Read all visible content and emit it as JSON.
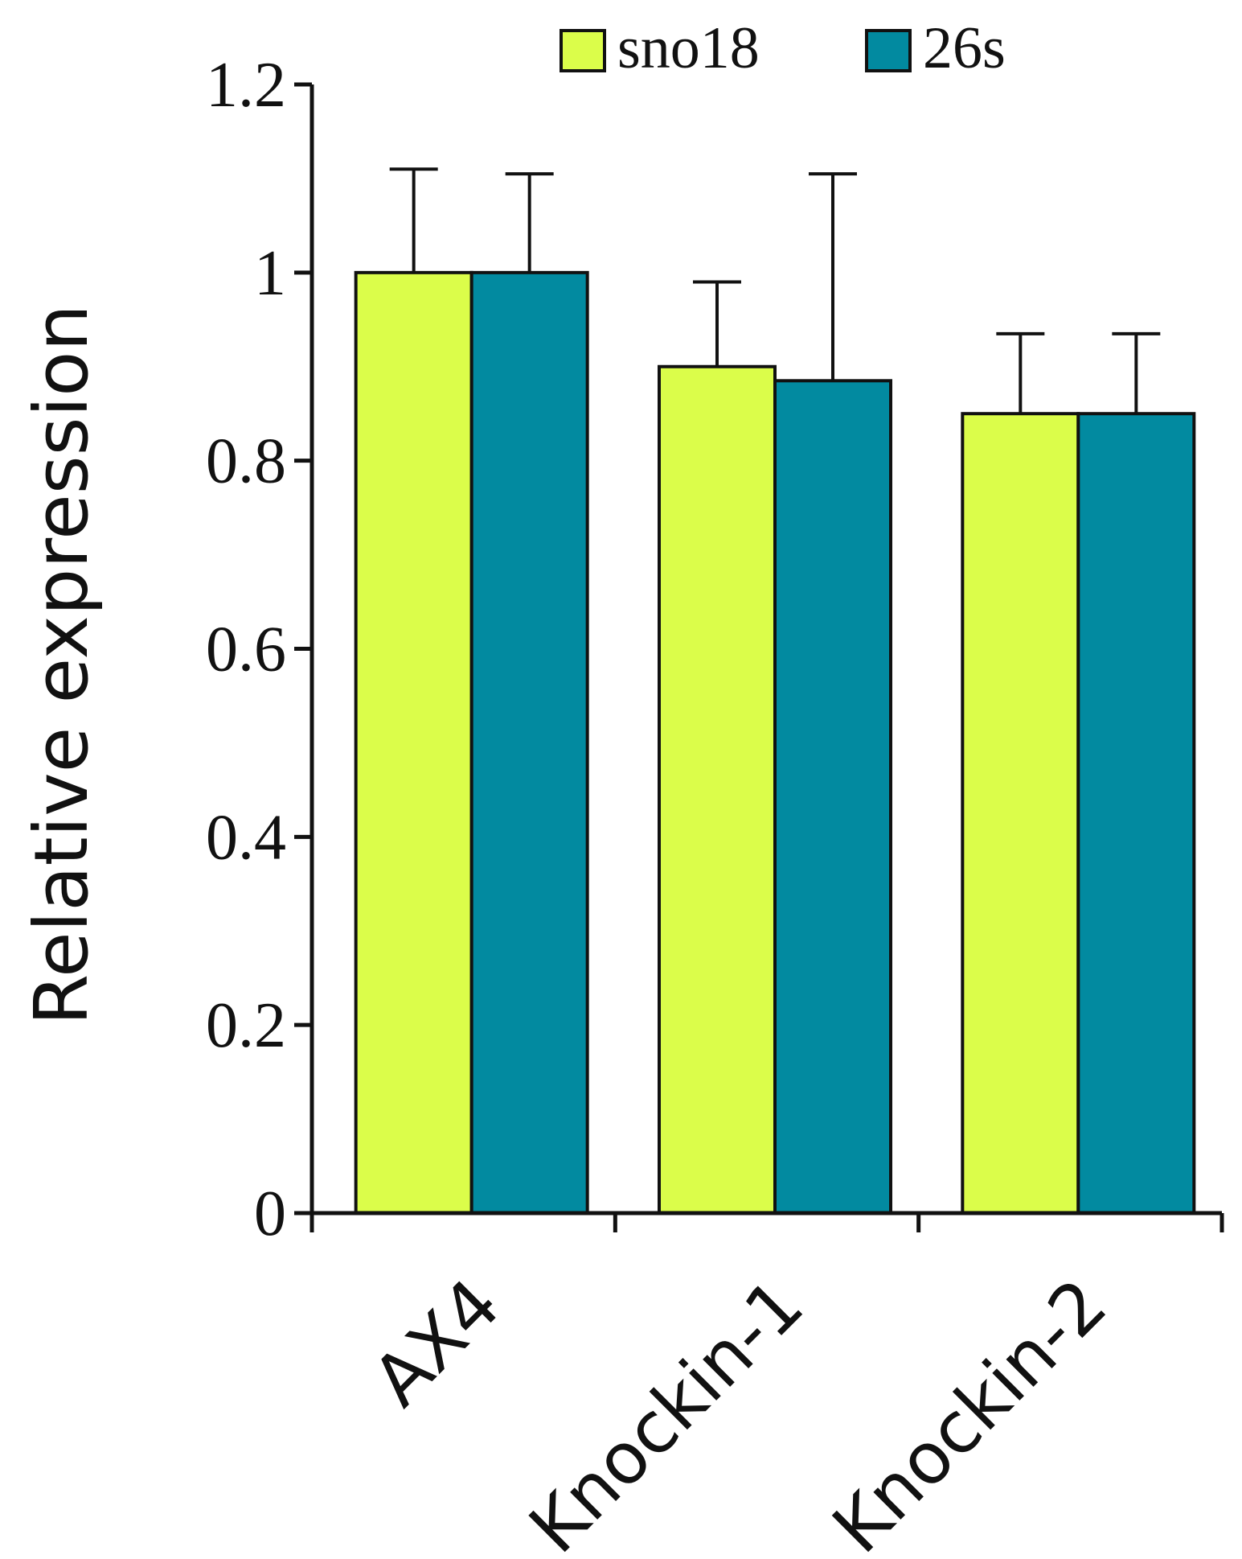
{
  "chart_data": {
    "type": "bar",
    "title": "",
    "xlabel": "",
    "ylabel": "Relative expression",
    "ylim": [
      0,
      1.2
    ],
    "y_ticks": [
      "0",
      "0.2",
      "0.4",
      "0.6",
      "0.8",
      "1",
      "1.2"
    ],
    "categories": [
      "AX4",
      "Knockin-1",
      "Knockin-2"
    ],
    "legend_position": "top-right",
    "grid": false,
    "series": [
      {
        "name": "sno18",
        "color": "#dbfd4a",
        "values": [
          1.0,
          0.9,
          0.85
        ],
        "errors": [
          0.11,
          0.09,
          0.085
        ]
      },
      {
        "name": "26s",
        "color": "#028aa0",
        "values": [
          1.0,
          0.885,
          0.85
        ],
        "errors": [
          0.105,
          0.22,
          0.085
        ]
      }
    ]
  }
}
